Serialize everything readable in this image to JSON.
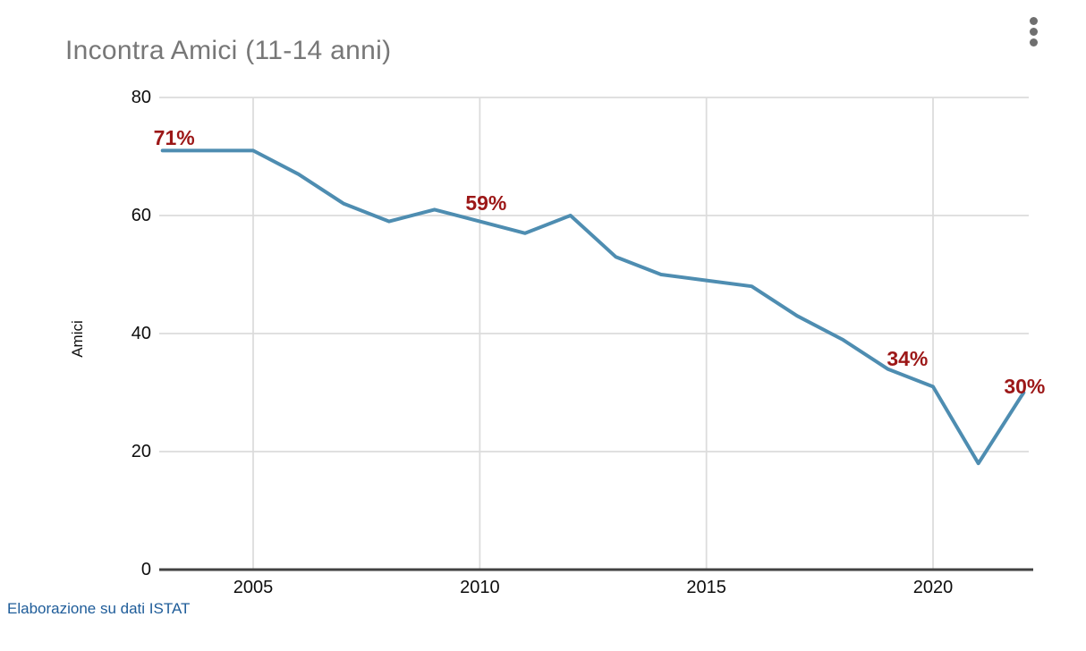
{
  "chart_data": {
    "type": "line",
    "title": "Incontra Amici (11-14 anni)",
    "ylabel": "Amici",
    "x": [
      2003,
      2004,
      2005,
      2006,
      2007,
      2008,
      2009,
      2010,
      2011,
      2012,
      2013,
      2014,
      2015,
      2016,
      2017,
      2018,
      2019,
      2020,
      2021,
      2022
    ],
    "values": [
      71,
      71,
      71,
      67,
      62,
      59,
      61,
      59,
      57,
      60,
      53,
      50,
      49,
      48,
      43,
      39,
      34,
      31,
      18,
      30
    ],
    "ylim": [
      0,
      80
    ],
    "yticks": [
      0,
      20,
      40,
      60,
      80
    ],
    "xticks": [
      2005,
      2010,
      2015,
      2020
    ],
    "grid": true,
    "legend": "none",
    "line_color": "#4e8db1",
    "annotation_color": "#9c1717",
    "annotations": [
      {
        "x": 2003,
        "y": 71,
        "label": "71%"
      },
      {
        "x": 2010,
        "y": 59,
        "label": "59%"
      },
      {
        "x": 2019,
        "y": 34,
        "label": "34%"
      },
      {
        "x": 2022,
        "y": 30,
        "label": "30%"
      }
    ]
  },
  "menu": {
    "icon": "kebab-menu"
  },
  "footer": {
    "source": "Elaborazione su dati ISTAT"
  }
}
